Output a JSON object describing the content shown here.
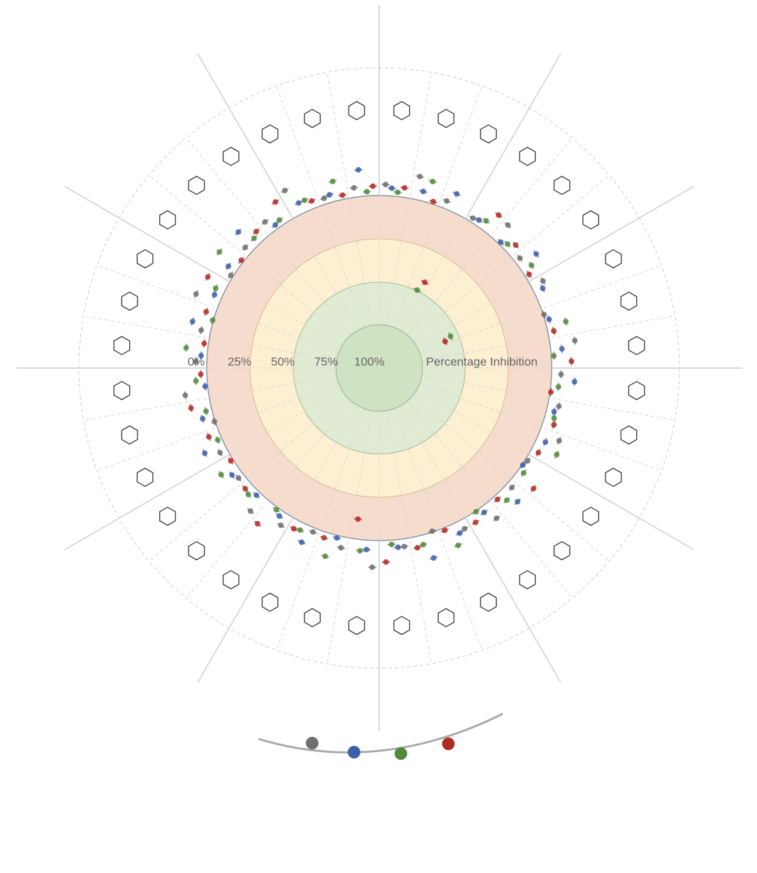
{
  "chart_data": {
    "type": "radial",
    "rlim": [
      0,
      100
    ],
    "rticks": [
      {
        "value": 0,
        "label": "0%"
      },
      {
        "value": 25,
        "label": "25%"
      },
      {
        "value": 50,
        "label": "50%"
      },
      {
        "value": 75,
        "label": "75%"
      },
      {
        "value": 100,
        "label": "100%"
      }
    ],
    "axis_label": "Percentage Inhibition",
    "categories": [
      null,
      null,
      null,
      null,
      null,
      null,
      null,
      null,
      null,
      null,
      null,
      null,
      null,
      null,
      null,
      null,
      null,
      null,
      null,
      null,
      null,
      null,
      null,
      null,
      null,
      null,
      null,
      null,
      null,
      null,
      null,
      null,
      null,
      null,
      null,
      null
    ],
    "series": [
      {
        "color": "#6f6f6f",
        "values": [
          2,
          -5,
          4,
          6,
          -3,
          5,
          1,
          8,
          -6,
          3,
          2,
          -4,
          7,
          5,
          -2,
          3,
          9,
          4,
          -7,
          2,
          6,
          1,
          -3,
          5,
          4,
          8,
          -5,
          2,
          3,
          -6,
          7,
          4,
          1,
          -8,
          5,
          3
        ]
      },
      {
        "color": "#3b5fa8",
        "values": [
          4,
          3,
          -2,
          5,
          7,
          -4,
          3,
          6,
          2,
          -5,
          4,
          3,
          8,
          -3,
          5,
          2,
          -6,
          4,
          3,
          7,
          -2,
          5,
          6,
          3,
          -4,
          2,
          7,
          5,
          -3,
          4,
          3,
          -5,
          6,
          2,
          4,
          -7
        ]
      },
      {
        "color": "#4f8a3c",
        "values": [
          6,
          -4,
          58,
          3,
          5,
          2,
          63,
          -3,
          7,
          4,
          3,
          -6,
          5,
          2,
          8,
          -4,
          3,
          6,
          2,
          -5,
          4,
          7,
          3,
          -2,
          6,
          5,
          2,
          -4,
          8,
          3,
          -6,
          4,
          5,
          2,
          -3,
          6
        ]
      },
      {
        "color": "#b02a22",
        "values": [
          3,
          7,
          52,
          -4,
          2,
          6,
          67,
          5,
          -3,
          8,
          2,
          4,
          -5,
          6,
          3,
          7,
          2,
          -4,
          20,
          5,
          3,
          -6,
          4,
          7,
          2,
          -3,
          5,
          6,
          3,
          -4,
          7,
          2,
          -5,
          4,
          6,
          3
        ]
      }
    ]
  }
}
